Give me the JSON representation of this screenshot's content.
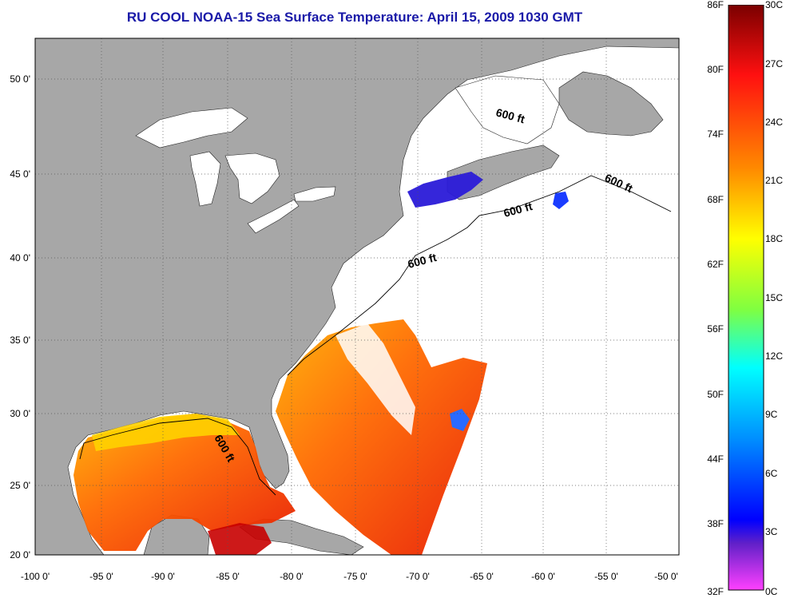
{
  "title": "RU COOL  NOAA-15  Sea Surface Temperature:  April 15, 2009 1030 GMT",
  "map": {
    "lon_range": [
      -100,
      -50
    ],
    "lat_range": [
      20,
      52.5
    ],
    "x_ticks": [
      "-100 0'",
      "-95 0'",
      "-90 0'",
      "-85 0'",
      "-80 0'",
      "-75 0'",
      "-70 0'",
      "-65 0'",
      "-60 0'",
      "-55 0'",
      "-50 0'"
    ],
    "y_ticks": [
      "50 0'",
      "45 0'",
      "40 0'",
      "35 0'",
      "30 0'",
      "25 0'",
      "20 0'"
    ],
    "grid": "dotted",
    "contour_labels": [
      "600 ft",
      "600 ft",
      "600 ft",
      "600 ft",
      "600 ft"
    ],
    "land_color": "#a7a7a7",
    "no_data_color": "#ffffff"
  },
  "colorbar": {
    "fahrenheit_labels": [
      "86F",
      "80F",
      "74F",
      "68F",
      "62F",
      "56F",
      "50F",
      "44F",
      "38F",
      "32F"
    ],
    "celsius_labels": [
      "30C",
      "27C",
      "24C",
      "21C",
      "18C",
      "15C",
      "12C",
      "9C",
      "6C",
      "3C",
      "0C"
    ],
    "colors": [
      "#8b0000",
      "#ff1a1a",
      "#ff8a00",
      "#ffff00",
      "#80ff40",
      "#00ffff",
      "#0080ff",
      "#0000ff",
      "#8020c0",
      "#ff40ff"
    ]
  }
}
